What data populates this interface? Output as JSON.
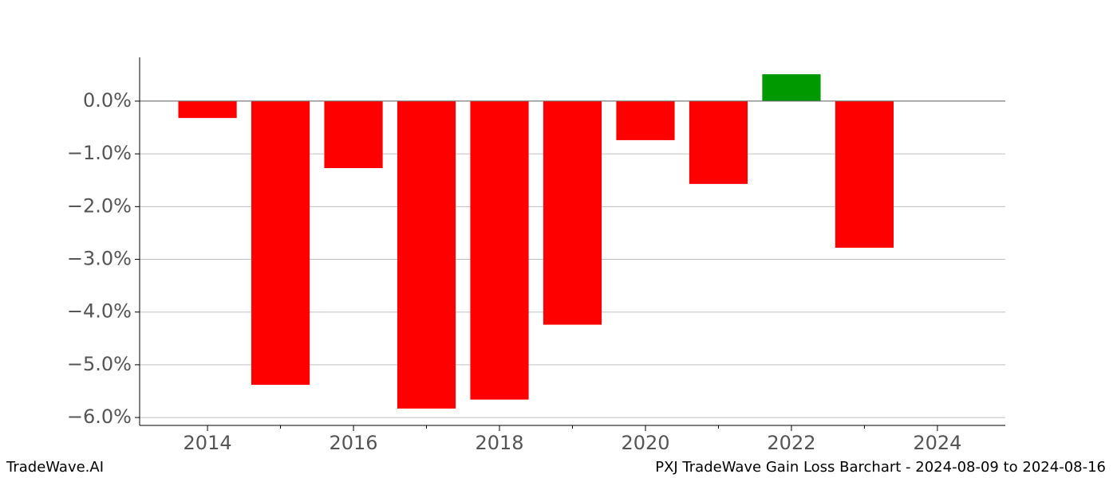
{
  "chart_data": {
    "type": "bar",
    "title": "PXJ TradeWave Gain Loss Barchart - 2024-08-09 to 2024-08-16",
    "watermark": "TradeWave.AI",
    "x": [
      2014,
      2015,
      2016,
      2017,
      2018,
      2019,
      2020,
      2021,
      2022,
      2023
    ],
    "values": [
      -0.32,
      -5.38,
      -1.27,
      -5.83,
      -5.66,
      -4.24,
      -0.74,
      -1.57,
      0.51,
      -2.78
    ],
    "colors": [
      "#ff0000",
      "#ff0000",
      "#ff0000",
      "#ff0000",
      "#ff0000",
      "#ff0000",
      "#ff0000",
      "#ff0000",
      "#009900",
      "#ff0000"
    ],
    "xlim": [
      2013.07,
      2024.93
    ],
    "xticks": [
      2014,
      2016,
      2018,
      2020,
      2022,
      2024
    ],
    "xminorticks": [
      2015,
      2017,
      2019,
      2021,
      2023
    ],
    "ylim": [
      -6.15,
      0.83
    ],
    "yticks": [
      {
        "value": 0,
        "label": "0.0%"
      },
      {
        "value": -1,
        "label": "−1.0%"
      },
      {
        "value": -2,
        "label": "−2.0%"
      },
      {
        "value": -3,
        "label": "−3.0%"
      },
      {
        "value": -4,
        "label": "−4.0%"
      },
      {
        "value": -5,
        "label": "−5.0%"
      },
      {
        "value": -6,
        "label": "−6.0%"
      }
    ],
    "grid": true
  }
}
